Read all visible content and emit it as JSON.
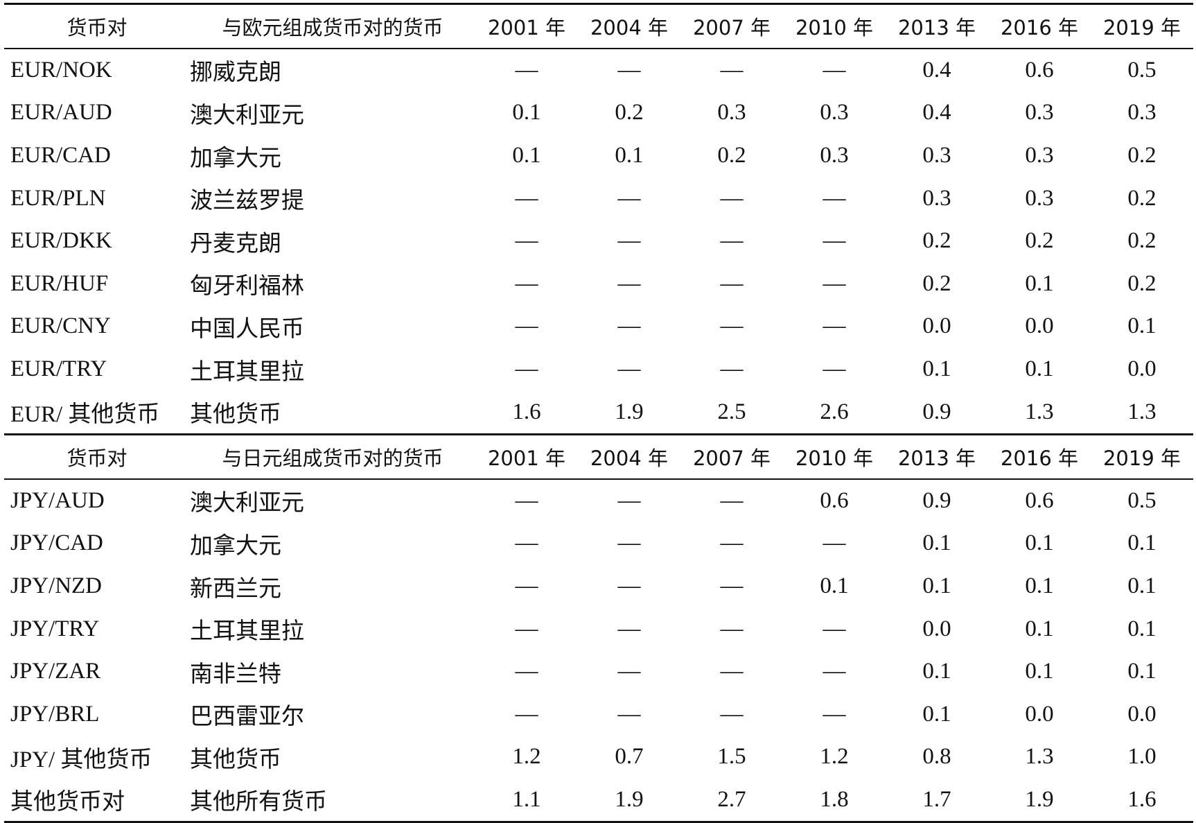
{
  "sections": [
    {
      "header": [
        "货币对",
        "与欧元组成货币对的货币",
        "2001 年",
        "2004 年",
        "2007 年",
        "2010 年",
        "2013 年",
        "2016 年",
        "2019 年"
      ],
      "rows": [
        [
          "EUR/NOK",
          "挪威克朗",
          "—",
          "—",
          "—",
          "—",
          "0.4",
          "0.6",
          "0.5"
        ],
        [
          "EUR/AUD",
          "澳大利亚元",
          "0.1",
          "0.2",
          "0.3",
          "0.3",
          "0.4",
          "0.3",
          "0.3"
        ],
        [
          "EUR/CAD",
          "加拿大元",
          "0.1",
          "0.1",
          "0.2",
          "0.3",
          "0.3",
          "0.3",
          "0.2"
        ],
        [
          "EUR/PLN",
          "波兰兹罗提",
          "—",
          "—",
          "—",
          "—",
          "0.3",
          "0.3",
          "0.2"
        ],
        [
          "EUR/DKK",
          "丹麦克朗",
          "—",
          "—",
          "—",
          "—",
          "0.2",
          "0.2",
          "0.2"
        ],
        [
          "EUR/HUF",
          "匈牙利福林",
          "—",
          "—",
          "—",
          "—",
          "0.2",
          "0.1",
          "0.2"
        ],
        [
          "EUR/CNY",
          "中国人民币",
          "—",
          "—",
          "—",
          "—",
          "0.0",
          "0.0",
          "0.1"
        ],
        [
          "EUR/TRY",
          "土耳其里拉",
          "—",
          "—",
          "—",
          "—",
          "0.1",
          "0.1",
          "0.0"
        ],
        [
          "EUR/ 其他货币",
          "其他货币",
          "1.6",
          "1.9",
          "2.5",
          "2.6",
          "0.9",
          "1.3",
          "1.3"
        ]
      ]
    },
    {
      "header": [
        "货币对",
        "与日元组成货币对的货币",
        "2001 年",
        "2004 年",
        "2007 年",
        "2010 年",
        "2013 年",
        "2016 年",
        "2019 年"
      ],
      "rows": [
        [
          "JPY/AUD",
          "澳大利亚元",
          "—",
          "—",
          "—",
          "0.6",
          "0.9",
          "0.6",
          "0.5"
        ],
        [
          "JPY/CAD",
          "加拿大元",
          "—",
          "—",
          "—",
          "—",
          "0.1",
          "0.1",
          "0.1"
        ],
        [
          "JPY/NZD",
          "新西兰元",
          "—",
          "—",
          "—",
          "0.1",
          "0.1",
          "0.1",
          "0.1"
        ],
        [
          "JPY/TRY",
          "土耳其里拉",
          "—",
          "—",
          "—",
          "—",
          "0.0",
          "0.1",
          "0.1"
        ],
        [
          "JPY/ZAR",
          "南非兰特",
          "—",
          "—",
          "—",
          "—",
          "0.1",
          "0.1",
          "0.1"
        ],
        [
          "JPY/BRL",
          "巴西雷亚尔",
          "—",
          "—",
          "—",
          "—",
          "0.1",
          "0.0",
          "0.0"
        ],
        [
          "JPY/ 其他货币",
          "其他货币",
          "1.2",
          "0.7",
          "1.5",
          "1.2",
          "0.8",
          "1.3",
          "1.0"
        ],
        [
          "其他货币对",
          "其他所有货币",
          "1.1",
          "1.9",
          "2.7",
          "1.8",
          "1.7",
          "1.9",
          "1.6"
        ]
      ]
    }
  ]
}
